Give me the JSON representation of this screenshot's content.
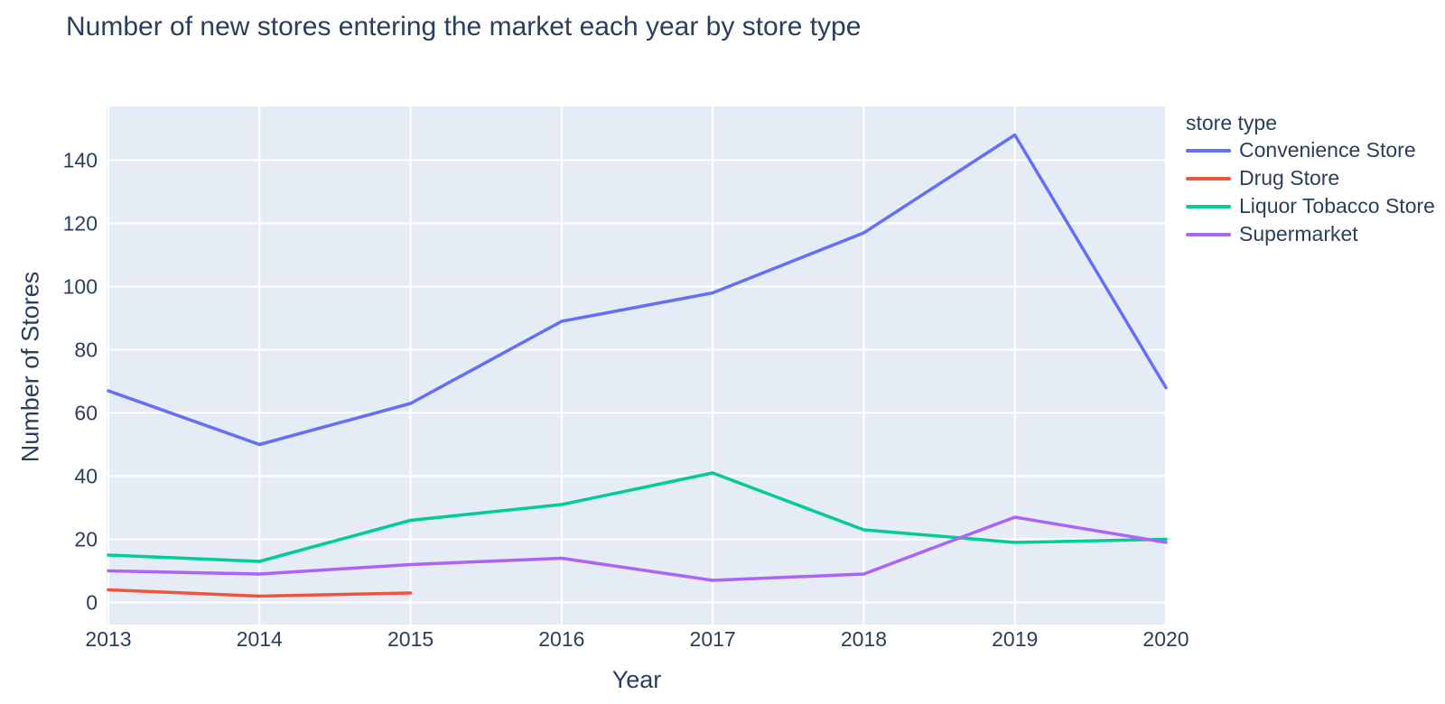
{
  "title": "Number of new stores entering the market each year by store type",
  "x_axis": {
    "label": "Year"
  },
  "y_axis": {
    "label": "Number of Stores"
  },
  "legend": {
    "title": "store type"
  },
  "colors": {
    "text": "#2a3f5f",
    "grid": "#ffffff",
    "paper": "#ffffff",
    "plot_bg": "#E5ECF6"
  },
  "chart_data": {
    "type": "line",
    "title": "Number of new stores entering the market each year by store type",
    "xlabel": "Year",
    "ylabel": "Number of Stores",
    "categories": [
      "2013",
      "2014",
      "2015",
      "2016",
      "2017",
      "2018",
      "2019",
      "2020"
    ],
    "yticks": [
      0,
      20,
      40,
      60,
      80,
      100,
      120,
      140
    ],
    "ylim": [
      -7,
      157
    ],
    "grid": true,
    "legend_position": "right",
    "legend_title": "store type",
    "plot_bg": "#E5ECF6",
    "series": [
      {
        "name": "Convenience Store",
        "color": "#636EFA",
        "values": [
          67,
          50,
          63,
          89,
          98,
          117,
          148,
          68
        ]
      },
      {
        "name": "Drug Store",
        "color": "#EF553B",
        "values": [
          4,
          2,
          3,
          null,
          null,
          null,
          null,
          null
        ]
      },
      {
        "name": "Liquor Tobacco Store",
        "color": "#00CC96",
        "values": [
          15,
          13,
          26,
          31,
          41,
          23,
          19,
          20
        ]
      },
      {
        "name": "Supermarket",
        "color": "#AB63FA",
        "values": [
          10,
          9,
          12,
          14,
          7,
          9,
          27,
          19
        ]
      }
    ]
  }
}
